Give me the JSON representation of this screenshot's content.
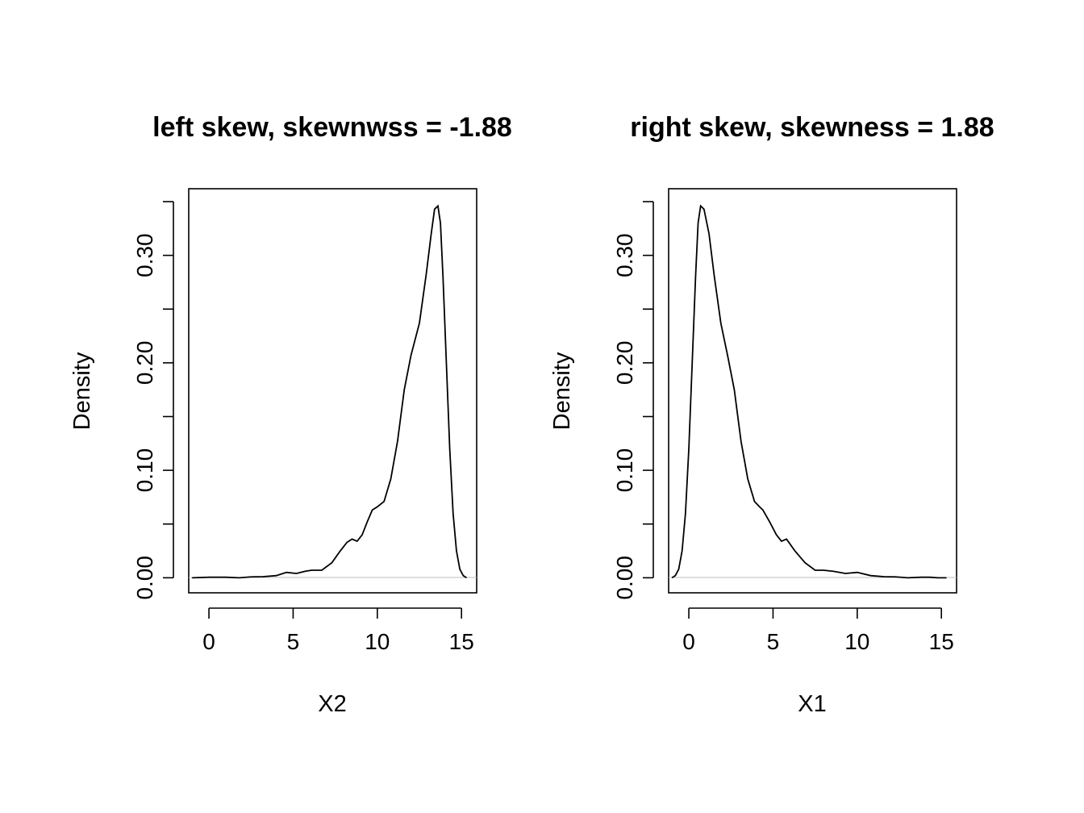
{
  "chart_data": [
    {
      "type": "line",
      "title": "left skew, skewnwss = -1.88",
      "xlabel": "X2",
      "ylabel": "Density",
      "xlim": [
        -1.2,
        15.9
      ],
      "ylim": [
        -0.014,
        0.362
      ],
      "x_ticks": [
        0,
        5,
        10,
        15
      ],
      "x_tick_labels": [
        "0",
        "5",
        "10",
        "15"
      ],
      "y_ticks": [
        0.0,
        0.05,
        0.1,
        0.15,
        0.2,
        0.25,
        0.3,
        0.35
      ],
      "y_tick_labels": [
        "0.00",
        "",
        "0.10",
        "",
        "0.20",
        "",
        "0.30",
        ""
      ],
      "grid": false,
      "legend": "none",
      "series": [
        {
          "x": [
            -1.0,
            0.0,
            1.0,
            1.8,
            2.5,
            3.2,
            4.0,
            4.6,
            5.2,
            5.7,
            6.1,
            6.7,
            7.3,
            7.8,
            8.2,
            8.5,
            8.8,
            9.1,
            9.4,
            9.7,
            10.0,
            10.4,
            10.8,
            11.2,
            11.6,
            12.0,
            12.5,
            12.9,
            13.2,
            13.4,
            13.6,
            13.75,
            13.9,
            14.1,
            14.3,
            14.5,
            14.7,
            14.9,
            15.1,
            15.3
          ],
          "y": [
            0.0,
            0.0005,
            0.0005,
            0.0,
            0.0008,
            0.001,
            0.002,
            0.005,
            0.004,
            0.006,
            0.007,
            0.007,
            0.014,
            0.025,
            0.033,
            0.036,
            0.034,
            0.04,
            0.052,
            0.063,
            0.066,
            0.071,
            0.092,
            0.127,
            0.175,
            0.207,
            0.237,
            0.282,
            0.32,
            0.343,
            0.346,
            0.33,
            0.28,
            0.2,
            0.12,
            0.06,
            0.025,
            0.008,
            0.002,
            0.0
          ]
        }
      ]
    },
    {
      "type": "line",
      "title": "right skew, skewness = 1.88",
      "xlabel": "X1",
      "ylabel": "Density",
      "xlim": [
        -1.2,
        15.9
      ],
      "ylim": [
        -0.014,
        0.362
      ],
      "x_ticks": [
        0,
        5,
        10,
        15
      ],
      "x_tick_labels": [
        "0",
        "5",
        "10",
        "15"
      ],
      "y_ticks": [
        0.0,
        0.05,
        0.1,
        0.15,
        0.2,
        0.25,
        0.3,
        0.35
      ],
      "y_tick_labels": [
        "0.00",
        "",
        "0.10",
        "",
        "0.20",
        "",
        "0.30",
        ""
      ],
      "grid": false,
      "legend": "none",
      "series": [
        {
          "x": [
            -1.0,
            -0.8,
            -0.6,
            -0.4,
            -0.2,
            0.0,
            0.2,
            0.4,
            0.55,
            0.7,
            0.9,
            1.2,
            1.5,
            1.9,
            2.3,
            2.7,
            3.1,
            3.5,
            3.9,
            4.2,
            4.4,
            4.8,
            5.2,
            5.5,
            5.8,
            6.3,
            6.9,
            7.5,
            8.0,
            8.6,
            9.3,
            10.0,
            10.8,
            11.6,
            12.3,
            13.0,
            13.8,
            14.3,
            14.8,
            15.3
          ],
          "y": [
            0.0,
            0.002,
            0.008,
            0.025,
            0.06,
            0.12,
            0.2,
            0.28,
            0.33,
            0.346,
            0.343,
            0.32,
            0.282,
            0.237,
            0.207,
            0.175,
            0.127,
            0.092,
            0.071,
            0.066,
            0.063,
            0.052,
            0.04,
            0.034,
            0.036,
            0.025,
            0.014,
            0.007,
            0.007,
            0.006,
            0.004,
            0.005,
            0.002,
            0.001,
            0.0008,
            0.0,
            0.0005,
            0.0005,
            0.0,
            0.0
          ]
        }
      ]
    }
  ]
}
